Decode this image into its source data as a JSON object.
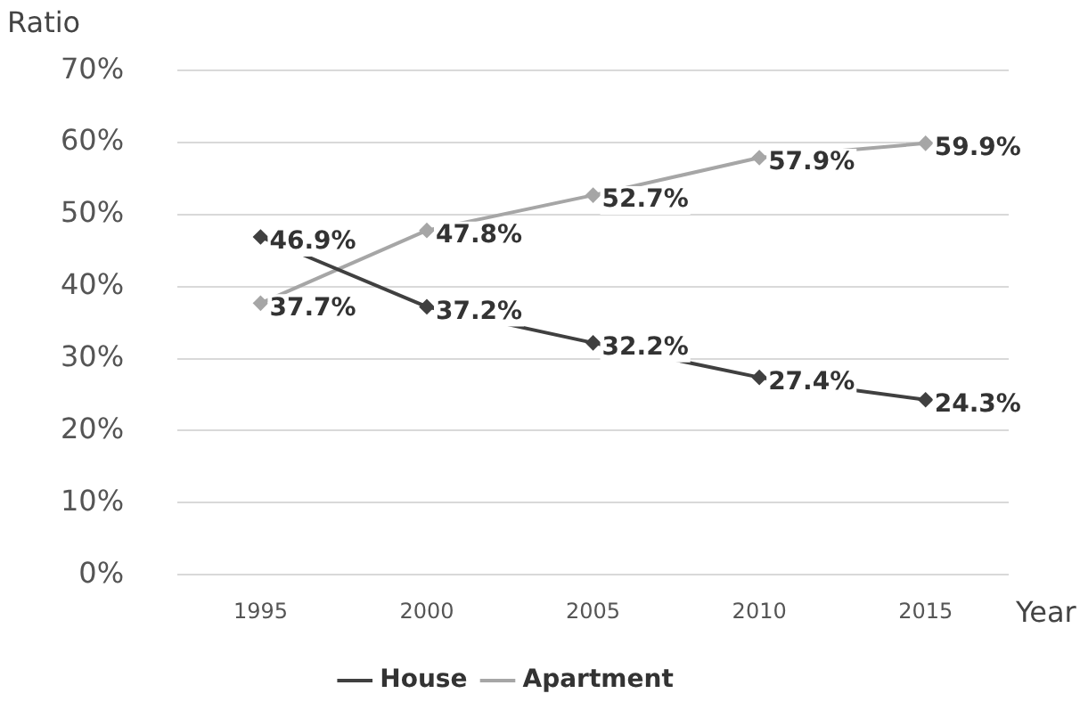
{
  "chart_data": {
    "type": "line",
    "xlabel": "Year",
    "ylabel": "Ratio",
    "categories": [
      "1995",
      "2000",
      "2005",
      "2010",
      "2015"
    ],
    "series": [
      {
        "name": "House",
        "color": "#404040",
        "values": [
          46.9,
          37.2,
          32.2,
          27.4,
          24.3
        ],
        "value_labels": [
          "46.9%",
          "37.2%",
          "32.2%",
          "27.4%",
          "24.3%"
        ]
      },
      {
        "name": "Apartment",
        "color": "#a6a6a6",
        "values": [
          37.7,
          47.8,
          52.7,
          57.9,
          59.9
        ],
        "value_labels": [
          "37.7%",
          "47.8%",
          "52.7%",
          "57.9%",
          "59.9%"
        ]
      }
    ],
    "ylim": [
      0,
      70
    ],
    "yticks": [
      {
        "value": 0,
        "label": "0%"
      },
      {
        "value": 10,
        "label": "10%"
      },
      {
        "value": 20,
        "label": "20%"
      },
      {
        "value": 30,
        "label": "30%"
      },
      {
        "value": 40,
        "label": "40%"
      },
      {
        "value": 50,
        "label": "50%"
      },
      {
        "value": 60,
        "label": "60%"
      },
      {
        "value": 70,
        "label": "70%"
      }
    ],
    "grid": "y",
    "legend": "bottom",
    "marker": "diamond",
    "line_style": "solid"
  }
}
